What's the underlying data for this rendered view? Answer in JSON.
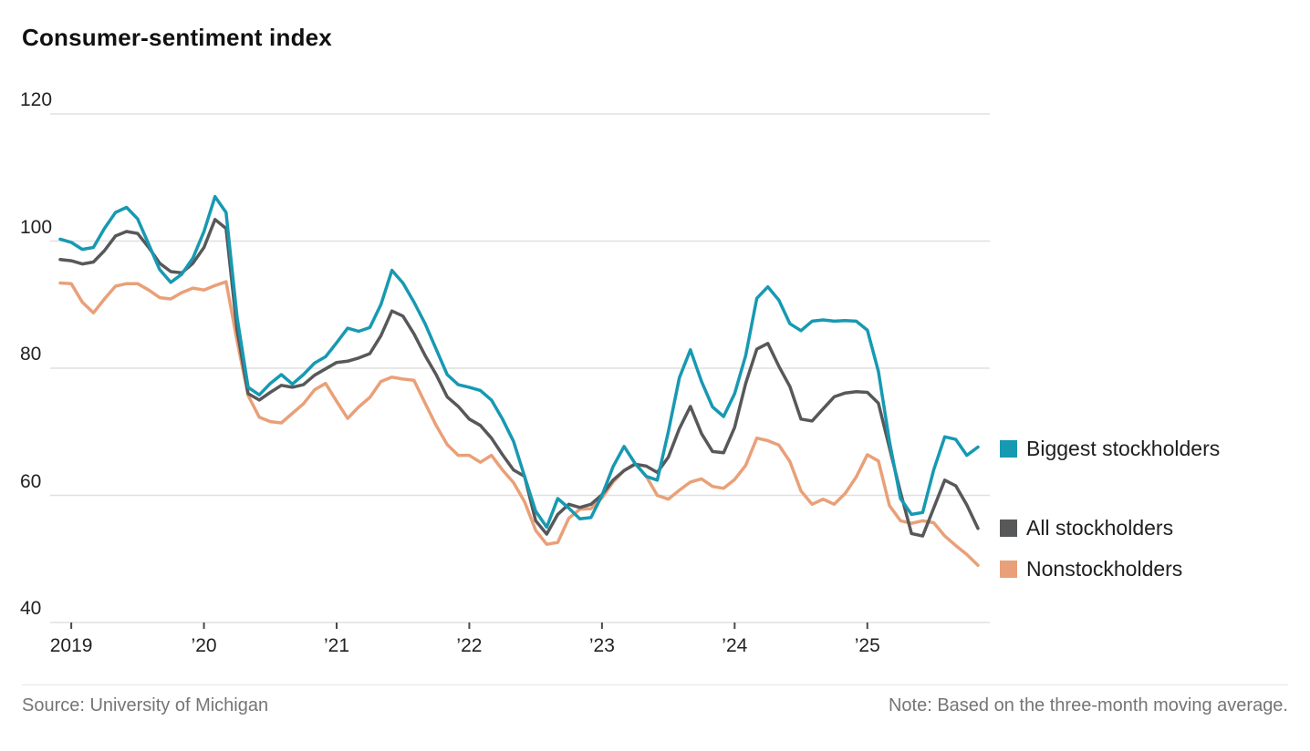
{
  "title": "Consumer-sentiment index",
  "source": "Source: University of Michigan",
  "note": "Note: Based on the three-month moving average.",
  "legend": [
    {
      "label": "Biggest stockholders",
      "color": "#1799b2"
    },
    {
      "label": "All stockholders",
      "color": "#57585a"
    },
    {
      "label": "Nonstockholders",
      "color": "#e9a078"
    }
  ],
  "chart_data": {
    "type": "line",
    "title": "Consumer-sentiment index",
    "frequency": "monthly",
    "start": "2018-12",
    "end": "2025-11",
    "xlabel": "",
    "ylabel": "",
    "ylim": [
      40,
      120
    ],
    "y_ticks": [
      40,
      60,
      80,
      100,
      120
    ],
    "x_tick_labels": [
      "2019",
      "’20",
      "’21",
      "’22",
      "’23",
      "’24",
      "’25"
    ],
    "grid": "horizontal",
    "legend_position": "right-of-line-ends",
    "gridline_color": "#e0e0e0",
    "tick_color": "#4a4a4a",
    "series": [
      {
        "name": "Nonstockholders",
        "color": "#e9a078",
        "values": [
          93.4,
          93.3,
          90.4,
          88.7,
          90.9,
          92.9,
          93.3,
          93.3,
          92.3,
          91.1,
          90.9,
          91.9,
          92.6,
          92.3,
          93.0,
          93.6,
          84.3,
          75.7,
          72.3,
          71.6,
          71.4,
          72.9,
          74.4,
          76.6,
          77.6,
          74.8,
          72.1,
          73.9,
          75.4,
          77.9,
          78.6,
          78.3,
          78.1,
          74.5,
          71.0,
          68.0,
          66.3,
          66.3,
          65.2,
          66.3,
          64.0,
          62.0,
          59.0,
          54.5,
          52.3,
          52.6,
          56.4,
          57.8,
          57.9,
          59.6,
          62.1,
          63.9,
          65.0,
          63.0,
          60.0,
          59.4,
          60.8,
          62.1,
          62.6,
          61.4,
          61.1,
          62.5,
          64.7,
          69.0,
          68.6,
          67.9,
          65.3,
          60.7,
          58.6,
          59.4,
          58.6,
          60.3,
          62.9,
          66.4,
          65.4,
          58.4,
          56.0,
          55.6,
          56.0,
          55.7,
          53.6,
          52.1,
          50.7,
          49.0
        ]
      },
      {
        "name": "All stockholders",
        "color": "#57585a",
        "values": [
          97.1,
          96.9,
          96.4,
          96.7,
          98.5,
          100.8,
          101.5,
          101.2,
          99.0,
          96.5,
          95.2,
          95.0,
          96.5,
          99.0,
          103.4,
          102.0,
          86.0,
          76.0,
          75.0,
          76.2,
          77.3,
          77.0,
          77.4,
          78.9,
          79.9,
          80.9,
          81.1,
          81.6,
          82.3,
          85.1,
          89.0,
          88.2,
          85.4,
          82.0,
          79.0,
          75.5,
          74.0,
          72.0,
          71.0,
          69.0,
          66.4,
          64.0,
          63.0,
          56.0,
          53.9,
          57.0,
          58.6,
          58.1,
          58.6,
          60.1,
          62.4,
          63.9,
          64.9,
          64.6,
          63.6,
          66.0,
          70.5,
          74.0,
          69.7,
          66.9,
          66.7,
          70.7,
          77.6,
          83.0,
          83.9,
          80.3,
          77.1,
          72.0,
          71.7,
          73.6,
          75.5,
          76.1,
          76.3,
          76.2,
          74.5,
          67.5,
          60.5,
          54.0,
          53.6,
          58.0,
          62.4,
          61.5,
          58.5,
          54.8
        ]
      },
      {
        "name": "Biggest stockholders",
        "color": "#1799b2",
        "values": [
          100.3,
          99.8,
          98.7,
          99.0,
          102.0,
          104.5,
          105.3,
          103.5,
          99.5,
          95.5,
          93.5,
          94.8,
          97.3,
          101.5,
          107.0,
          104.5,
          88.0,
          77.0,
          75.8,
          77.6,
          79.0,
          77.5,
          79.0,
          80.8,
          81.8,
          84.0,
          86.3,
          85.8,
          86.4,
          90.0,
          95.4,
          93.4,
          90.4,
          87.0,
          83.0,
          79.0,
          77.4,
          77.0,
          76.5,
          75.0,
          72.0,
          68.5,
          63.0,
          57.5,
          55.0,
          59.5,
          58.0,
          56.3,
          56.5,
          60.0,
          64.5,
          67.7,
          65.0,
          63.0,
          62.4,
          70.0,
          78.5,
          82.9,
          77.9,
          73.9,
          72.4,
          76.0,
          82.0,
          91.0,
          92.8,
          90.7,
          87.0,
          85.9,
          87.4,
          87.6,
          87.4,
          87.5,
          87.4,
          86.0,
          79.5,
          68.5,
          59.5,
          57.0,
          57.3,
          64.0,
          69.2,
          68.8,
          66.3,
          67.6
        ]
      }
    ]
  }
}
